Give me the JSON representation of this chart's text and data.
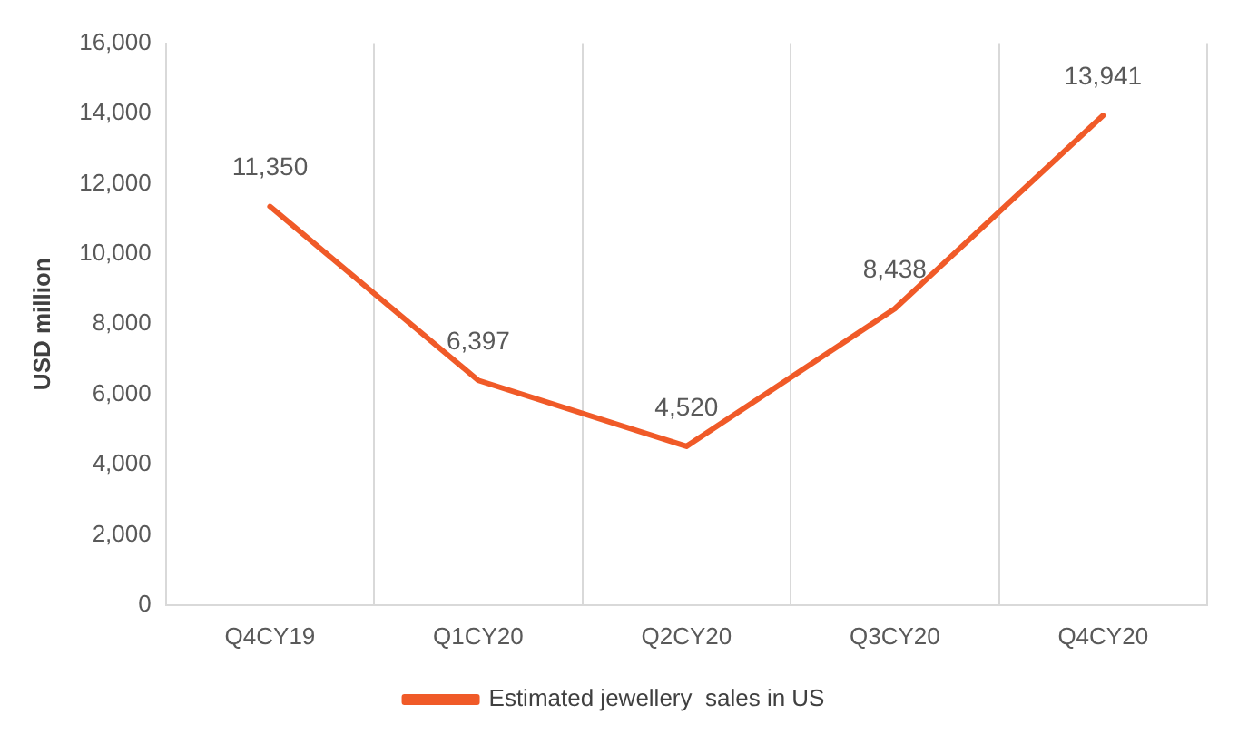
{
  "chart_data": {
    "type": "line",
    "ylabel": "USD million",
    "categories": [
      "Q4CY19",
      "Q1CY20",
      "Q2CY20",
      "Q3CY20",
      "Q4CY20"
    ],
    "series": [
      {
        "name": "Estimated jewellery  sales in US",
        "color": "#f05a28",
        "values": [
          11350,
          6397,
          4520,
          8438,
          13941
        ],
        "value_labels": [
          "11,350",
          "6,397",
          "4,520",
          "8,438",
          "13,941"
        ]
      }
    ],
    "ylim": [
      0,
      16000
    ],
    "yticks": [
      {
        "value": 0,
        "label": "0"
      },
      {
        "value": 2000,
        "label": "2,000"
      },
      {
        "value": 4000,
        "label": "4,000"
      },
      {
        "value": 6000,
        "label": "6,000"
      },
      {
        "value": 8000,
        "label": "8,000"
      },
      {
        "value": 10000,
        "label": "10,000"
      },
      {
        "value": 12000,
        "label": "12,000"
      },
      {
        "value": 14000,
        "label": "14,000"
      },
      {
        "value": 16000,
        "label": "16,000"
      }
    ],
    "grid": "x",
    "legend": "bottom",
    "marker": "none",
    "line_style": "solid"
  }
}
